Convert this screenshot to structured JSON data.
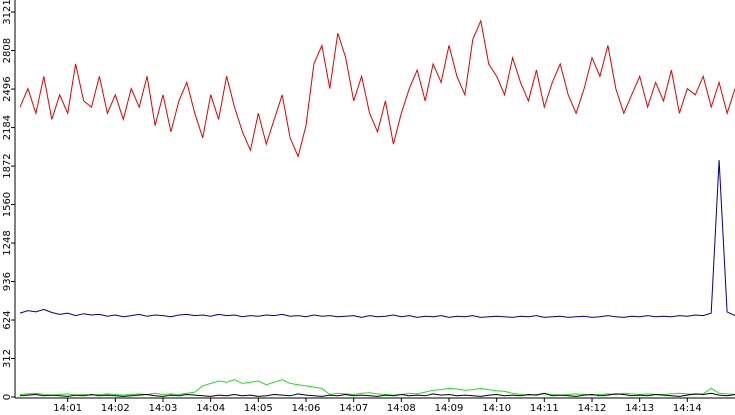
{
  "chart_data": {
    "type": "line",
    "categories": [
      null,
      null,
      null,
      null,
      null,
      null,
      "14:01",
      null,
      null,
      null,
      null,
      null,
      "14:02",
      null,
      null,
      null,
      null,
      null,
      "14:03",
      null,
      null,
      null,
      null,
      null,
      "14:04",
      null,
      null,
      null,
      null,
      null,
      "14:05",
      null,
      null,
      null,
      null,
      null,
      "14:06",
      null,
      null,
      null,
      null,
      null,
      "14:07",
      null,
      null,
      null,
      null,
      null,
      "14:08",
      null,
      null,
      null,
      null,
      null,
      "14:09",
      null,
      null,
      null,
      null,
      null,
      "14:10",
      null,
      null,
      null,
      null,
      null,
      "14:11",
      null,
      null,
      null,
      null,
      null,
      "14:12",
      null,
      null,
      null,
      null,
      null,
      "14:13",
      null,
      null,
      null,
      null,
      null,
      "14:14",
      null,
      null,
      null,
      null,
      null,
      null
    ],
    "series": [
      {
        "color": "#e00000",
        "values": [
          2350,
          2500,
          2300,
          2600,
          2250,
          2450,
          2300,
          2700,
          2400,
          2350,
          2600,
          2300,
          2450,
          2250,
          2500,
          2350,
          2600,
          2200,
          2450,
          2150,
          2400,
          2550,
          2300,
          2100,
          2450,
          2250,
          2600,
          2350,
          2150,
          2000,
          2300,
          2050,
          2250,
          2450,
          2100,
          1950,
          2200,
          2700,
          2850,
          2500,
          2950,
          2750,
          2400,
          2600,
          2300,
          2150,
          2400,
          2050,
          2300,
          2500,
          2650,
          2400,
          2700,
          2550,
          2850,
          2600,
          2450,
          2900,
          3050,
          2700,
          2600,
          2450,
          2750,
          2550,
          2400,
          2650,
          2350,
          2550,
          2700,
          2450,
          2300,
          2500,
          2750,
          2600,
          2850,
          2500,
          2300,
          2450,
          2600,
          2350,
          2550,
          2400,
          2650,
          2300,
          2500,
          2450,
          2600,
          2350,
          2550,
          2300,
          2500
        ]
      },
      {
        "color": "#000090",
        "values": [
          680,
          700,
          690,
          710,
          685,
          670,
          680,
          660,
          675,
          665,
          670,
          655,
          665,
          650,
          660,
          670,
          655,
          665,
          660,
          650,
          665,
          670,
          660,
          665,
          655,
          670,
          660,
          665,
          650,
          660,
          655,
          665,
          660,
          670,
          655,
          660,
          650,
          665,
          655,
          660,
          650,
          655,
          660,
          645,
          660,
          650,
          655,
          665,
          650,
          660,
          645,
          655,
          650,
          660,
          645,
          655,
          650,
          660,
          645,
          650,
          655,
          650,
          645,
          655,
          650,
          660,
          645,
          650,
          655,
          645,
          650,
          655,
          645,
          650,
          660,
          650,
          645,
          655,
          650,
          660,
          650,
          655,
          650,
          660,
          655,
          665,
          660,
          680,
          1920,
          690,
          660
        ]
      },
      {
        "color": "#22dd22",
        "values": [
          20,
          25,
          30,
          20,
          15,
          20,
          25,
          15,
          20,
          15,
          20,
          25,
          20,
          15,
          20,
          25,
          20,
          30,
          20,
          25,
          20,
          30,
          40,
          90,
          110,
          130,
          120,
          140,
          110,
          120,
          130,
          100,
          120,
          140,
          110,
          100,
          90,
          80,
          70,
          20,
          30,
          25,
          20,
          30,
          35,
          25,
          20,
          15,
          20,
          30,
          25,
          40,
          55,
          60,
          70,
          65,
          55,
          60,
          70,
          60,
          50,
          45,
          30,
          20,
          15,
          20,
          25,
          20,
          15,
          20,
          25,
          20,
          15,
          20,
          25,
          20,
          30,
          25,
          20,
          25,
          20,
          20,
          25,
          30,
          25,
          20,
          25,
          70,
          30,
          25,
          20
        ]
      },
      {
        "color": "#000000",
        "values": [
          10,
          15,
          20,
          10,
          15,
          10,
          5,
          15,
          10,
          20,
          10,
          15,
          10,
          5,
          10,
          15,
          20,
          10,
          5,
          15,
          10,
          20,
          15,
          10,
          5,
          15,
          10,
          20,
          10,
          15,
          5,
          10,
          20,
          15,
          10,
          25,
          15,
          10,
          5,
          15,
          10,
          20,
          10,
          15,
          10,
          5,
          15,
          10,
          20,
          10,
          15,
          10,
          25,
          15,
          20,
          10,
          15,
          10,
          5,
          15,
          20,
          10,
          15,
          10,
          20,
          15,
          30,
          10,
          15,
          10,
          5,
          15,
          20,
          10,
          15,
          25,
          20,
          10,
          15,
          10,
          20,
          15,
          10,
          5,
          15,
          25,
          20,
          30,
          15,
          10,
          20
        ]
      }
    ],
    "ylim": [
      0,
      3121
    ],
    "yticks": [
      0,
      312,
      624,
      936,
      1248,
      1560,
      1872,
      2184,
      2496,
      2808,
      3121
    ]
  }
}
